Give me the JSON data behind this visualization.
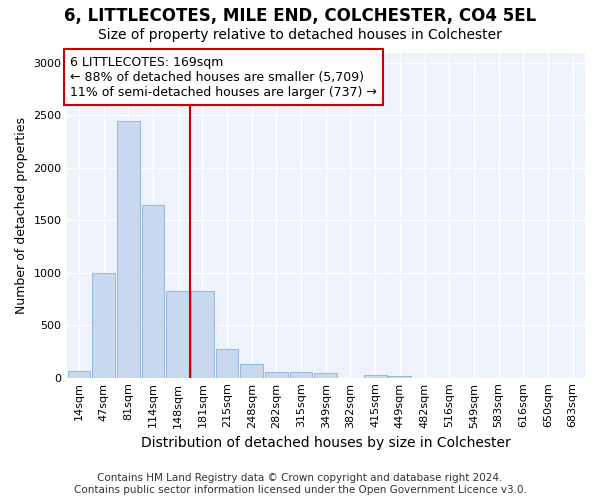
{
  "title": "6, LITTLECOTES, MILE END, COLCHESTER, CO4 5EL",
  "subtitle": "Size of property relative to detached houses in Colchester",
  "xlabel": "Distribution of detached houses by size in Colchester",
  "ylabel": "Number of detached properties",
  "footer_line1": "Contains HM Land Registry data © Crown copyright and database right 2024.",
  "footer_line2": "Contains public sector information licensed under the Open Government Licence v3.0.",
  "bar_labels": [
    "14sqm",
    "47sqm",
    "81sqm",
    "114sqm",
    "148sqm",
    "181sqm",
    "215sqm",
    "248sqm",
    "282sqm",
    "315sqm",
    "349sqm",
    "382sqm",
    "415sqm",
    "449sqm",
    "482sqm",
    "516sqm",
    "549sqm",
    "583sqm",
    "616sqm",
    "650sqm",
    "683sqm"
  ],
  "bar_values": [
    60,
    1000,
    2450,
    1650,
    830,
    830,
    270,
    130,
    55,
    50,
    40,
    0,
    30,
    20,
    0,
    0,
    0,
    0,
    0,
    0,
    0
  ],
  "bar_color": "#c8d8ef",
  "bar_edge_color": "#8ab0d8",
  "vline_x": 5.0,
  "vline_color": "#cc0000",
  "annotation_line1": "6 LITTLECOTES: 169sqm",
  "annotation_line2": "← 88% of detached houses are smaller (5,709)",
  "annotation_line3": "11% of semi-detached houses are larger (737) →",
  "ylim": [
    0,
    3100
  ],
  "yticks": [
    0,
    500,
    1000,
    1500,
    2000,
    2500,
    3000
  ],
  "fig_bg_color": "#ffffff",
  "plot_bg_color": "#eef2fb",
  "grid_color": "#ffffff",
  "title_fontsize": 12,
  "subtitle_fontsize": 10,
  "xlabel_fontsize": 10,
  "ylabel_fontsize": 9,
  "tick_fontsize": 8,
  "annot_fontsize": 9,
  "footer_fontsize": 7.5
}
